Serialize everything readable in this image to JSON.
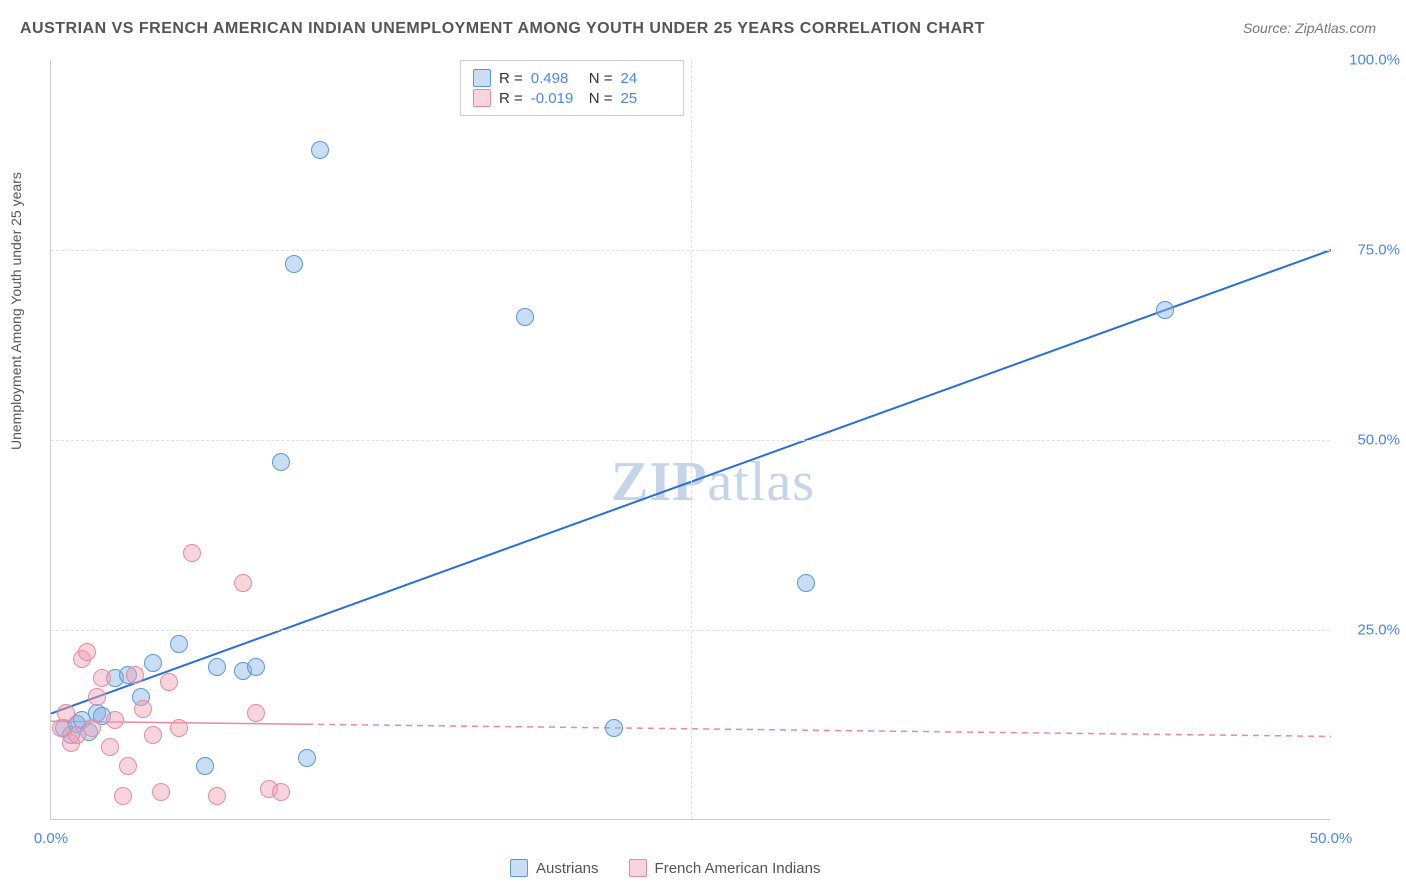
{
  "title": "AUSTRIAN VS FRENCH AMERICAN INDIAN UNEMPLOYMENT AMONG YOUTH UNDER 25 YEARS CORRELATION CHART",
  "source": "Source: ZipAtlas.com",
  "y_axis_label": "Unemployment Among Youth under 25 years",
  "watermark_bold": "ZIP",
  "watermark_rest": "atlas",
  "chart": {
    "type": "scatter",
    "xlim": [
      0,
      50
    ],
    "ylim": [
      0,
      100
    ],
    "x_ticks": [
      0,
      50
    ],
    "x_tick_labels": [
      "0.0%",
      "50.0%"
    ],
    "y_ticks": [
      25,
      50,
      75,
      100
    ],
    "y_tick_labels": [
      "25.0%",
      "50.0%",
      "75.0%",
      "100.0%"
    ],
    "x_grid": [
      25
    ],
    "y_grid": [
      25,
      50,
      75
    ],
    "background_color": "#ffffff",
    "grid_color": "#e0e0e0",
    "axis_color": "#cccccc",
    "tick_label_color": "#4a86e8",
    "point_radius": 9,
    "series": [
      {
        "name": "Austrians",
        "color_fill": "rgba(135, 180, 230, 0.45)",
        "color_stroke": "#5a9bd5",
        "R": "0.498",
        "N": "24",
        "trend": {
          "x1": 0,
          "y1": 14,
          "x2": 50,
          "y2": 75,
          "color": "#2a6fd6",
          "dash": false,
          "width": 2
        },
        "points": [
          [
            0.5,
            12
          ],
          [
            0.8,
            11
          ],
          [
            1.0,
            12.5
          ],
          [
            1.2,
            13
          ],
          [
            1.5,
            11.5
          ],
          [
            1.8,
            14
          ],
          [
            2.0,
            13.5
          ],
          [
            2.5,
            18.5
          ],
          [
            3.0,
            19
          ],
          [
            3.5,
            16
          ],
          [
            4.0,
            20.5
          ],
          [
            5.0,
            23
          ],
          [
            6.0,
            7
          ],
          [
            6.5,
            20
          ],
          [
            7.5,
            19.5
          ],
          [
            8.0,
            20
          ],
          [
            9.0,
            47
          ],
          [
            9.5,
            73
          ],
          [
            10.0,
            8
          ],
          [
            10.5,
            88
          ],
          [
            18.5,
            66
          ],
          [
            22,
            12
          ],
          [
            29.5,
            31
          ],
          [
            43.5,
            67
          ]
        ]
      },
      {
        "name": "French American Indians",
        "color_fill": "rgba(240, 160, 180, 0.45)",
        "color_stroke": "#e88aa0",
        "R": "-0.019",
        "N": "25",
        "trend": {
          "x1": 0,
          "y1": 13,
          "x2": 50,
          "y2": 11,
          "color": "#e88aa0",
          "dash": true,
          "width": 1.5,
          "solid_until": 10
        },
        "points": [
          [
            0.4,
            12
          ],
          [
            0.6,
            14
          ],
          [
            0.8,
            10
          ],
          [
            1.0,
            11
          ],
          [
            1.2,
            21
          ],
          [
            1.4,
            22
          ],
          [
            1.6,
            12
          ],
          [
            1.8,
            16
          ],
          [
            2.0,
            18.5
          ],
          [
            2.3,
            9.5
          ],
          [
            2.5,
            13
          ],
          [
            2.8,
            3
          ],
          [
            3.0,
            7
          ],
          [
            3.3,
            19
          ],
          [
            3.6,
            14.5
          ],
          [
            4.0,
            11
          ],
          [
            4.3,
            3.5
          ],
          [
            4.6,
            18
          ],
          [
            5.0,
            12
          ],
          [
            5.5,
            35
          ],
          [
            6.5,
            3
          ],
          [
            7.5,
            31
          ],
          [
            8.0,
            14
          ],
          [
            8.5,
            4
          ],
          [
            9.0,
            3.5
          ]
        ]
      }
    ]
  },
  "legend_top": {
    "rows": [
      {
        "swatch": "blue",
        "r_label": "R =",
        "r_val": "0.498",
        "n_label": "N =",
        "n_val": "24"
      },
      {
        "swatch": "pink",
        "r_label": "R =",
        "r_val": "-0.019",
        "n_label": "N =",
        "n_val": "25"
      }
    ]
  },
  "legend_bottom": {
    "items": [
      {
        "swatch": "blue",
        "label": "Austrians"
      },
      {
        "swatch": "pink",
        "label": "French American Indians"
      }
    ]
  }
}
